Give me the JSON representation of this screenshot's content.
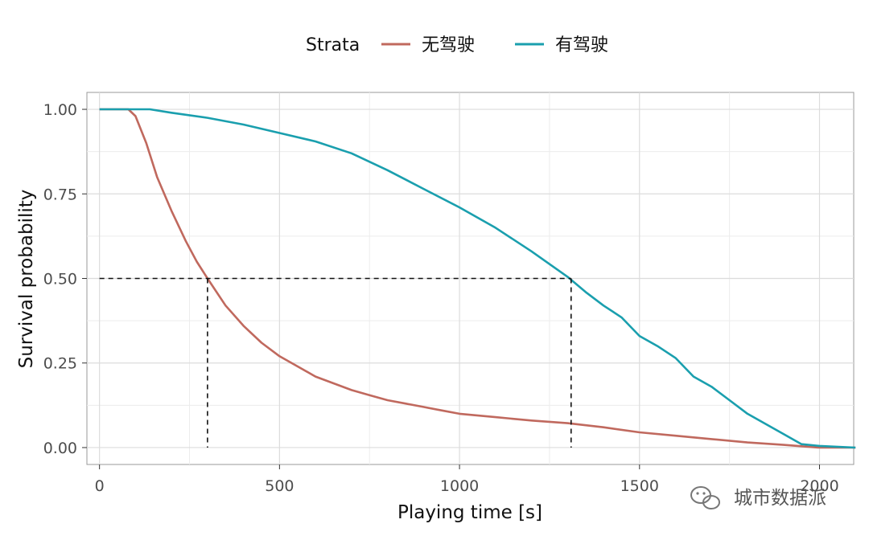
{
  "legend": {
    "title": "Strata",
    "items": [
      {
        "label": "无驾驶",
        "color": "#c0695e"
      },
      {
        "label": "有驾驶",
        "color": "#1a9fae"
      }
    ]
  },
  "axes": {
    "xlabel": "Playing time [s]",
    "ylabel": "Survival probability"
  },
  "watermark": {
    "text": "城市数据派",
    "icon": "wechat-icon"
  },
  "chart_data": {
    "type": "line",
    "title": "",
    "xlabel": "Playing time [s]",
    "ylabel": "Survival probability",
    "xlim": [
      -35,
      2095
    ],
    "ylim": [
      -0.05,
      1.05
    ],
    "x_ticks": [
      0,
      500,
      1000,
      1500,
      2000
    ],
    "x_tick_labels": [
      "0",
      "500",
      "1000",
      "1500",
      "2000"
    ],
    "y_ticks": [
      0.0,
      0.25,
      0.5,
      0.75,
      1.0
    ],
    "y_tick_labels": [
      "0.00",
      "0.25",
      "0.50",
      "0.75",
      "1.00"
    ],
    "grid": true,
    "legend_position": "top",
    "series": [
      {
        "name": "无驾驶",
        "color": "#c0695e",
        "points": [
          [
            0,
            1.0
          ],
          [
            80,
            1.0
          ],
          [
            100,
            0.98
          ],
          [
            130,
            0.9
          ],
          [
            160,
            0.8
          ],
          [
            200,
            0.7
          ],
          [
            240,
            0.61
          ],
          [
            270,
            0.55
          ],
          [
            300,
            0.5
          ],
          [
            350,
            0.42
          ],
          [
            400,
            0.36
          ],
          [
            450,
            0.31
          ],
          [
            500,
            0.27
          ],
          [
            550,
            0.24
          ],
          [
            600,
            0.21
          ],
          [
            650,
            0.19
          ],
          [
            700,
            0.17
          ],
          [
            750,
            0.155
          ],
          [
            800,
            0.14
          ],
          [
            850,
            0.13
          ],
          [
            900,
            0.12
          ],
          [
            950,
            0.11
          ],
          [
            1000,
            0.1
          ],
          [
            1100,
            0.09
          ],
          [
            1200,
            0.08
          ],
          [
            1300,
            0.072
          ],
          [
            1400,
            0.06
          ],
          [
            1500,
            0.045
          ],
          [
            1600,
            0.035
          ],
          [
            1700,
            0.025
          ],
          [
            1800,
            0.015
          ],
          [
            1900,
            0.008
          ],
          [
            1950,
            0.004
          ],
          [
            2000,
            0.0
          ],
          [
            2100,
            0.0
          ]
        ]
      },
      {
        "name": "有驾驶",
        "color": "#1a9fae",
        "points": [
          [
            0,
            1.0
          ],
          [
            140,
            1.0
          ],
          [
            200,
            0.99
          ],
          [
            300,
            0.975
          ],
          [
            400,
            0.955
          ],
          [
            500,
            0.93
          ],
          [
            600,
            0.905
          ],
          [
            700,
            0.87
          ],
          [
            800,
            0.82
          ],
          [
            900,
            0.765
          ],
          [
            1000,
            0.71
          ],
          [
            1100,
            0.65
          ],
          [
            1200,
            0.58
          ],
          [
            1300,
            0.505
          ],
          [
            1350,
            0.46
          ],
          [
            1400,
            0.42
          ],
          [
            1450,
            0.385
          ],
          [
            1500,
            0.33
          ],
          [
            1550,
            0.3
          ],
          [
            1600,
            0.265
          ],
          [
            1650,
            0.21
          ],
          [
            1700,
            0.18
          ],
          [
            1750,
            0.14
          ],
          [
            1800,
            0.1
          ],
          [
            1850,
            0.07
          ],
          [
            1900,
            0.04
          ],
          [
            1950,
            0.01
          ],
          [
            2000,
            0.005
          ],
          [
            2100,
            0.0
          ]
        ]
      }
    ],
    "median_lines": [
      {
        "x": 300,
        "y": 0.5
      },
      {
        "x": 1310,
        "y": 0.5
      }
    ]
  }
}
